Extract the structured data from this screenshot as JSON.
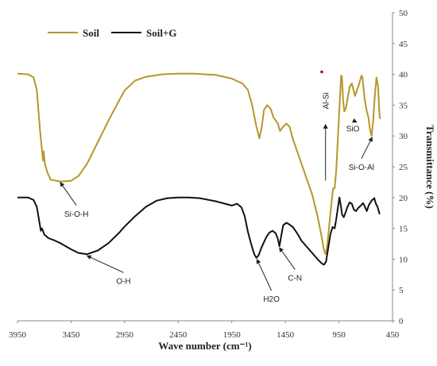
{
  "chart_data": {
    "type": "line",
    "xlabel": "Wave number (cm⁻¹)",
    "ylabel": "Transmittance (%)",
    "xlim": [
      3950,
      450
    ],
    "ylim": [
      0,
      50
    ],
    "x_reversed": true,
    "x_ticks": [
      "3950",
      "3450",
      "2950",
      "2450",
      "1950",
      "1450",
      "950",
      "450"
    ],
    "y_ticks": [
      "0",
      "5",
      "10",
      "15",
      "20",
      "25",
      "30",
      "35",
      "40",
      "45",
      "50"
    ],
    "y_axis_side": "right",
    "grid": false,
    "legend_position": "top-left",
    "series": [
      {
        "name": "Soil",
        "color": "#b8962a",
        "points": [
          [
            3950,
            40.1
          ],
          [
            3850,
            40.0
          ],
          [
            3800,
            39.5
          ],
          [
            3770,
            37.5
          ],
          [
            3740,
            31.0
          ],
          [
            3720,
            27.5
          ],
          [
            3712,
            26.0
          ],
          [
            3705,
            27.5
          ],
          [
            3695,
            25.5
          ],
          [
            3670,
            24.0
          ],
          [
            3640,
            22.9
          ],
          [
            3550,
            22.6
          ],
          [
            3450,
            22.7
          ],
          [
            3380,
            23.5
          ],
          [
            3300,
            25.5
          ],
          [
            3200,
            29.0
          ],
          [
            3100,
            32.5
          ],
          [
            3000,
            35.8
          ],
          [
            2950,
            37.4
          ],
          [
            2850,
            39.0
          ],
          [
            2750,
            39.6
          ],
          [
            2600,
            40.0
          ],
          [
            2450,
            40.1
          ],
          [
            2300,
            40.1
          ],
          [
            2100,
            39.9
          ],
          [
            1950,
            39.3
          ],
          [
            1850,
            38.5
          ],
          [
            1800,
            37.5
          ],
          [
            1760,
            35.0
          ],
          [
            1720,
            31.5
          ],
          [
            1692,
            29.6
          ],
          [
            1670,
            31.5
          ],
          [
            1650,
            34.2
          ],
          [
            1620,
            35.0
          ],
          [
            1590,
            34.5
          ],
          [
            1560,
            33.0
          ],
          [
            1520,
            32.0
          ],
          [
            1500,
            30.8
          ],
          [
            1470,
            31.5
          ],
          [
            1440,
            32.0
          ],
          [
            1410,
            31.5
          ],
          [
            1380,
            29.5
          ],
          [
            1350,
            28.0
          ],
          [
            1300,
            25.5
          ],
          [
            1250,
            23.0
          ],
          [
            1200,
            20.5
          ],
          [
            1150,
            17.0
          ],
          [
            1110,
            13.5
          ],
          [
            1090,
            11.5
          ],
          [
            1075,
            10.8
          ],
          [
            1060,
            12.0
          ],
          [
            1040,
            15.5
          ],
          [
            1020,
            19.0
          ],
          [
            1005,
            21.5
          ],
          [
            990,
            21.5
          ],
          [
            975,
            24.5
          ],
          [
            960,
            29.5
          ],
          [
            945,
            34.5
          ],
          [
            930,
            39.8
          ],
          [
            922,
            39.7
          ],
          [
            912,
            36.0
          ],
          [
            900,
            34.0
          ],
          [
            885,
            34.5
          ],
          [
            870,
            36.0
          ],
          [
            850,
            38.0
          ],
          [
            830,
            38.5
          ],
          [
            815,
            37.5
          ],
          [
            800,
            36.5
          ],
          [
            780,
            37.5
          ],
          [
            760,
            38.5
          ],
          [
            740,
            39.8
          ],
          [
            730,
            39.5
          ],
          [
            710,
            36.0
          ],
          [
            690,
            34.0
          ],
          [
            675,
            33.0
          ],
          [
            660,
            31.0
          ],
          [
            645,
            30.0
          ],
          [
            630,
            32.5
          ],
          [
            615,
            36.5
          ],
          [
            600,
            39.5
          ],
          [
            585,
            38.0
          ],
          [
            570,
            33.0
          ],
          [
            560,
            32.8
          ]
        ]
      },
      {
        "name": "Soil+G",
        "color": "#111111",
        "points": [
          [
            3950,
            20.0
          ],
          [
            3850,
            20.0
          ],
          [
            3800,
            19.6
          ],
          [
            3770,
            18.5
          ],
          [
            3745,
            16.0
          ],
          [
            3732,
            14.6
          ],
          [
            3722,
            15.0
          ],
          [
            3712,
            14.6
          ],
          [
            3700,
            14.0
          ],
          [
            3660,
            13.4
          ],
          [
            3600,
            13.0
          ],
          [
            3550,
            12.6
          ],
          [
            3450,
            11.6
          ],
          [
            3380,
            11.0
          ],
          [
            3300,
            10.8
          ],
          [
            3200,
            11.4
          ],
          [
            3100,
            12.6
          ],
          [
            3000,
            14.3
          ],
          [
            2950,
            15.3
          ],
          [
            2850,
            17.0
          ],
          [
            2750,
            18.5
          ],
          [
            2650,
            19.5
          ],
          [
            2550,
            19.9
          ],
          [
            2450,
            20.0
          ],
          [
            2350,
            20.0
          ],
          [
            2250,
            19.9
          ],
          [
            2100,
            19.4
          ],
          [
            1950,
            18.7
          ],
          [
            1900,
            19.0
          ],
          [
            1860,
            18.4
          ],
          [
            1830,
            17.0
          ],
          [
            1800,
            14.5
          ],
          [
            1770,
            12.5
          ],
          [
            1740,
            10.8
          ],
          [
            1720,
            10.2
          ],
          [
            1700,
            10.6
          ],
          [
            1670,
            12.0
          ],
          [
            1630,
            13.5
          ],
          [
            1600,
            14.3
          ],
          [
            1570,
            14.6
          ],
          [
            1540,
            14.2
          ],
          [
            1520,
            13.3
          ],
          [
            1505,
            12.1
          ],
          [
            1490,
            13.6
          ],
          [
            1470,
            15.5
          ],
          [
            1440,
            15.9
          ],
          [
            1410,
            15.6
          ],
          [
            1380,
            15.2
          ],
          [
            1340,
            14.2
          ],
          [
            1300,
            13.0
          ],
          [
            1250,
            12.0
          ],
          [
            1200,
            11.0
          ],
          [
            1150,
            10.0
          ],
          [
            1110,
            9.3
          ],
          [
            1090,
            9.1
          ],
          [
            1070,
            9.6
          ],
          [
            1050,
            11.8
          ],
          [
            1030,
            14.0
          ],
          [
            1010,
            15.2
          ],
          [
            990,
            15.0
          ],
          [
            975,
            16.5
          ],
          [
            960,
            18.3
          ],
          [
            945,
            20.0
          ],
          [
            935,
            19.0
          ],
          [
            920,
            17.2
          ],
          [
            905,
            16.8
          ],
          [
            890,
            17.5
          ],
          [
            870,
            18.5
          ],
          [
            850,
            19.2
          ],
          [
            830,
            19.0
          ],
          [
            810,
            18.0
          ],
          [
            790,
            17.8
          ],
          [
            770,
            18.3
          ],
          [
            745,
            18.7
          ],
          [
            725,
            19.1
          ],
          [
            705,
            18.4
          ],
          [
            690,
            17.8
          ],
          [
            670,
            18.8
          ],
          [
            645,
            19.5
          ],
          [
            620,
            19.9
          ],
          [
            605,
            19.0
          ],
          [
            590,
            18.5
          ],
          [
            570,
            17.3
          ]
        ]
      }
    ],
    "annotations": [
      {
        "label": "Si-O-H",
        "target": [
          3550,
          22.7
        ],
        "text_at": [
          3400,
          18.2
        ],
        "series": "Soil"
      },
      {
        "label": "O-H",
        "target": [
          3300,
          10.8
        ],
        "text_at": [
          2960,
          7.3
        ],
        "series": "Soil+G"
      },
      {
        "label": "H2O",
        "target": [
          1715,
          10.2
        ],
        "text_at": [
          1580,
          4.4
        ],
        "series": "Soil+G"
      },
      {
        "label": "C-N",
        "target": [
          1505,
          12.1
        ],
        "text_at": [
          1360,
          7.8
        ],
        "series": "Soil+G"
      },
      {
        "label": "Al-Si",
        "target": [
          1075,
          23.0
        ],
        "text_at": [
          1075,
          29.0
        ],
        "series": "Soil",
        "vertical": true
      },
      {
        "label": "SiO",
        "target": [
          785,
          32.5
        ],
        "text_at": [
          820,
          32.0
        ],
        "series": "Soil"
      },
      {
        "label": "Si-O-Al",
        "target": [
          640,
          30.0
        ],
        "text_at": [
          740,
          25.8
        ],
        "series": "Soil"
      }
    ],
    "marker": {
      "x": 1110,
      "y": 40.4,
      "color": "#8b1a1a"
    }
  }
}
